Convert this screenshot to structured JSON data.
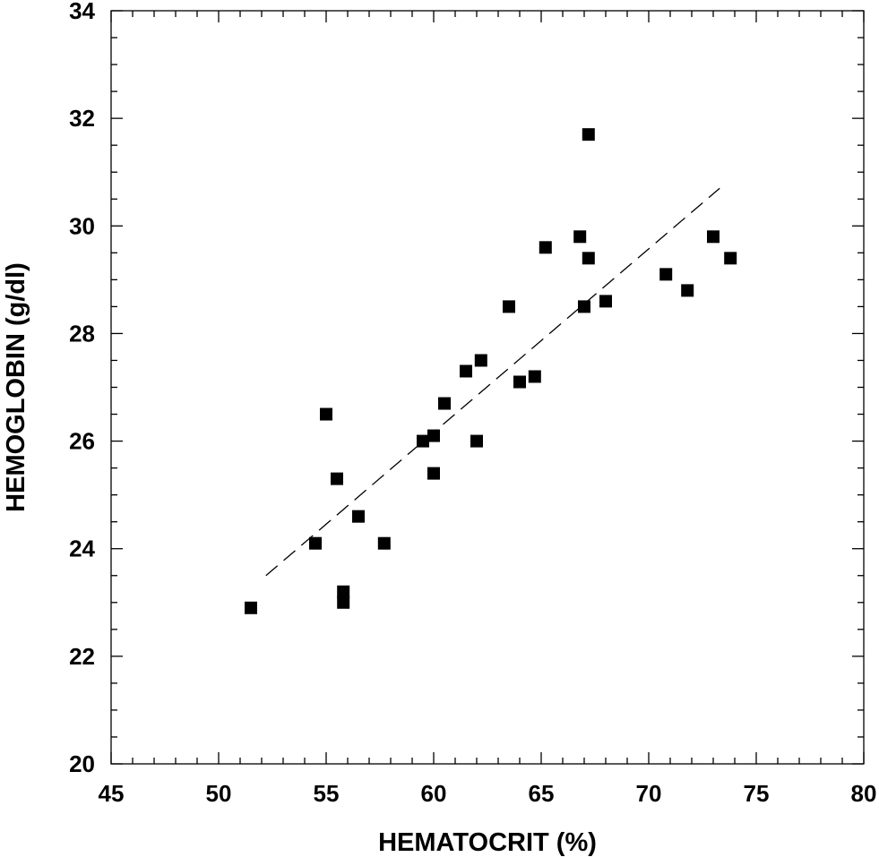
{
  "chart_data": {
    "type": "scatter",
    "title": "",
    "xlabel": "HEMATOCRIT (%)",
    "ylabel": "HEMOGLOBIN (g/dl)",
    "xlim": [
      45,
      80
    ],
    "ylim": [
      20,
      34
    ],
    "x_major_ticks": [
      45,
      50,
      55,
      60,
      65,
      70,
      75,
      80
    ],
    "y_major_ticks": [
      20,
      22,
      24,
      26,
      28,
      30,
      32,
      34
    ],
    "x_minor_step": 1,
    "y_minor_step": 0.5,
    "grid": false,
    "marker": "square",
    "marker_color": "#000000",
    "points": [
      {
        "x": 51.5,
        "y": 22.9
      },
      {
        "x": 54.5,
        "y": 24.1
      },
      {
        "x": 55.0,
        "y": 26.5
      },
      {
        "x": 55.5,
        "y": 25.3
      },
      {
        "x": 55.8,
        "y": 23.2
      },
      {
        "x": 55.8,
        "y": 23.0
      },
      {
        "x": 56.5,
        "y": 24.6
      },
      {
        "x": 57.7,
        "y": 24.1
      },
      {
        "x": 59.5,
        "y": 26.0
      },
      {
        "x": 60.0,
        "y": 26.1
      },
      {
        "x": 60.0,
        "y": 25.4
      },
      {
        "x": 60.5,
        "y": 26.7
      },
      {
        "x": 61.5,
        "y": 27.3
      },
      {
        "x": 62.0,
        "y": 26.0
      },
      {
        "x": 62.2,
        "y": 27.5
      },
      {
        "x": 63.5,
        "y": 28.5
      },
      {
        "x": 64.0,
        "y": 27.1
      },
      {
        "x": 64.7,
        "y": 27.2
      },
      {
        "x": 65.2,
        "y": 29.6
      },
      {
        "x": 66.8,
        "y": 29.8
      },
      {
        "x": 67.0,
        "y": 28.5
      },
      {
        "x": 67.2,
        "y": 31.7
      },
      {
        "x": 67.2,
        "y": 29.4
      },
      {
        "x": 68.0,
        "y": 28.6
      },
      {
        "x": 70.8,
        "y": 29.1
      },
      {
        "x": 71.8,
        "y": 28.8
      },
      {
        "x": 73.0,
        "y": 29.8
      },
      {
        "x": 73.8,
        "y": 29.4
      }
    ],
    "trendline": {
      "style": "dashed",
      "color": "#000000",
      "x": [
        52.2,
        73.3
      ],
      "y": [
        23.5,
        30.7
      ]
    }
  }
}
